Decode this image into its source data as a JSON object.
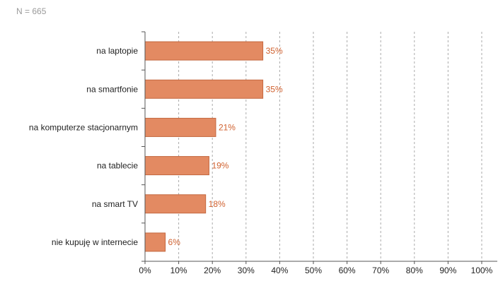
{
  "sample_note": "N = 665",
  "colors": {
    "bar": "#e38a62",
    "bar_stroke": "#c4673f",
    "value_label": "#d0612f",
    "grid": "#aaaaaa",
    "axis": "#555555"
  },
  "chart_data": {
    "type": "bar",
    "orientation": "horizontal",
    "categories": [
      "na laptopie",
      "na smartfonie",
      "na komputerze stacjonarnym",
      "na tablecie",
      "na smart TV",
      "nie kupuję w internecie"
    ],
    "values": [
      35,
      35,
      21,
      19,
      18,
      6
    ],
    "value_labels": [
      "35%",
      "35%",
      "21%",
      "19%",
      "18%",
      "6%"
    ],
    "xlim": [
      0,
      100
    ],
    "xticks": [
      "0%",
      "10%",
      "20%",
      "30%",
      "40%",
      "50%",
      "60%",
      "70%",
      "80%",
      "90%",
      "100%"
    ],
    "grid": "vertical dashed",
    "legend": "none",
    "title": "",
    "xlabel": "",
    "ylabel": ""
  }
}
